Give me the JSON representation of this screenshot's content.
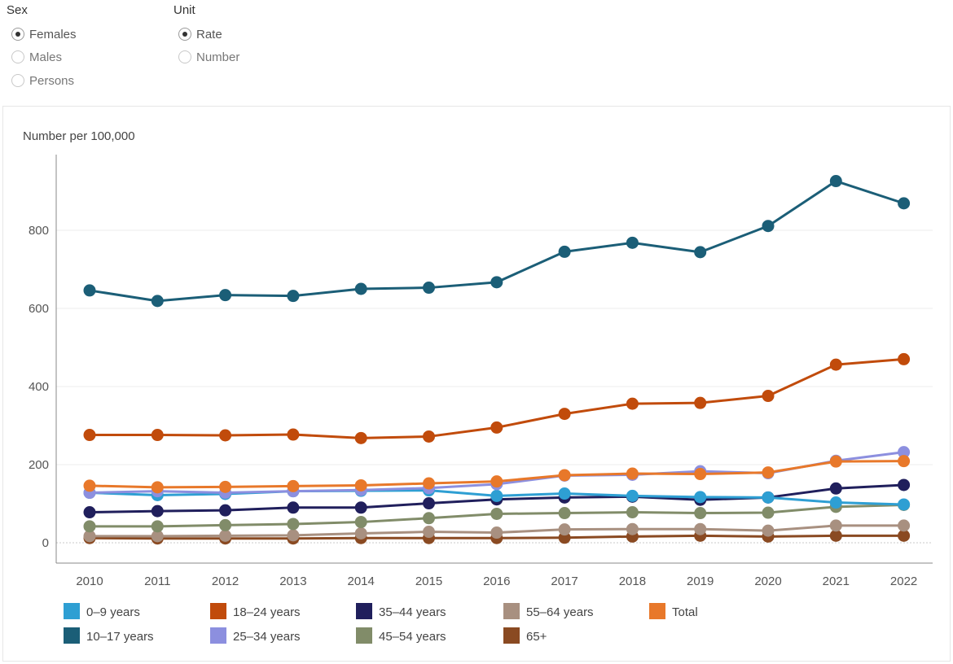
{
  "filters": {
    "sex": {
      "label": "Sex",
      "options": [
        "Females",
        "Males",
        "Persons"
      ],
      "selected": "Females"
    },
    "unit": {
      "label": "Unit",
      "options": [
        "Rate",
        "Number"
      ],
      "selected": "Rate"
    }
  },
  "chart_data": {
    "type": "line",
    "ylabel": "Number per 100,000",
    "x": [
      "2010",
      "2011",
      "2012",
      "2013",
      "2014",
      "2015",
      "2016",
      "2017",
      "2018",
      "2019",
      "2020",
      "2021",
      "2022"
    ],
    "ylim": [
      0,
      950
    ],
    "yticks": [
      0,
      200,
      400,
      600,
      800
    ],
    "grid": true,
    "legend_position": "bottom",
    "series": [
      {
        "name": "0–9 years",
        "color": "#2e9fd3",
        "values": [
          128,
          122,
          125,
          132,
          133,
          134,
          120,
          126,
          120,
          117,
          116,
          103,
          98
        ]
      },
      {
        "name": "10–17 years",
        "color": "#1b5e77",
        "values": [
          646,
          619,
          634,
          632,
          650,
          653,
          667,
          745,
          768,
          744,
          811,
          926,
          869
        ]
      },
      {
        "name": "18–24 years",
        "color": "#c14b0b",
        "values": [
          276,
          276,
          275,
          277,
          268,
          272,
          295,
          330,
          356,
          358,
          376,
          456,
          470
        ]
      },
      {
        "name": "25–34 years",
        "color": "#8c8fdf",
        "values": [
          128,
          132,
          128,
          132,
          135,
          140,
          150,
          172,
          174,
          183,
          178,
          210,
          232
        ]
      },
      {
        "name": "35–44 years",
        "color": "#201f5c",
        "values": [
          78,
          81,
          83,
          90,
          90,
          101,
          111,
          116,
          118,
          110,
          116,
          139,
          148
        ]
      },
      {
        "name": "45–54 years",
        "color": "#818c69",
        "values": [
          42,
          42,
          45,
          48,
          53,
          63,
          74,
          76,
          78,
          76,
          77,
          92,
          97
        ]
      },
      {
        "name": "55–64 years",
        "color": "#a89080",
        "values": [
          17,
          17,
          18,
          19,
          24,
          28,
          26,
          34,
          35,
          35,
          31,
          44,
          44
        ]
      },
      {
        "name": "65+",
        "color": "#8a4a22",
        "values": [
          12,
          11,
          11,
          11,
          12,
          12,
          12,
          13,
          16,
          18,
          16,
          18,
          18
        ]
      },
      {
        "name": "Total",
        "color": "#e8782a",
        "values": [
          146,
          142,
          143,
          145,
          147,
          152,
          157,
          173,
          177,
          176,
          180,
          208,
          209
        ]
      }
    ]
  }
}
